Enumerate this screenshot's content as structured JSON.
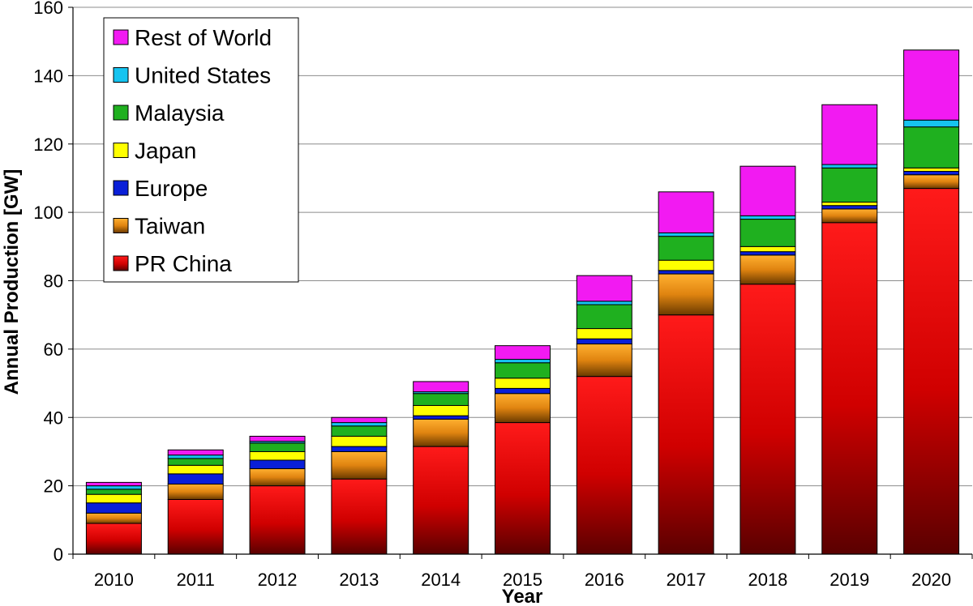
{
  "chart_data": {
    "type": "bar",
    "stacked": true,
    "title": "",
    "xlabel": "Year",
    "ylabel": "Annual Production [GW]",
    "ylim": [
      0,
      160
    ],
    "yticks": [
      0,
      20,
      40,
      60,
      80,
      100,
      120,
      140,
      160
    ],
    "grid": true,
    "legend_position": "top-left",
    "categories": [
      "2010",
      "2011",
      "2012",
      "2013",
      "2014",
      "2015",
      "2016",
      "2017",
      "2018",
      "2019",
      "2020"
    ],
    "series": [
      {
        "name": "PR China",
        "color": "#d40000",
        "values": [
          9,
          16,
          20,
          22,
          31.5,
          38.5,
          52,
          70,
          79,
          97,
          107
        ]
      },
      {
        "name": "Taiwan",
        "color": "#f39a1f",
        "values": [
          3,
          4.5,
          5,
          8,
          8,
          8.5,
          9.5,
          12,
          8.5,
          4,
          4
        ]
      },
      {
        "name": "Europe",
        "color": "#0a1fd8",
        "values": [
          3,
          3,
          2.5,
          1.5,
          1,
          1.5,
          1.5,
          1,
          1,
          1,
          1
        ]
      },
      {
        "name": "Japan",
        "color": "#ffff00",
        "values": [
          2.5,
          2.5,
          2.5,
          3,
          3,
          3,
          3,
          3,
          1.5,
          1,
          1
        ]
      },
      {
        "name": "Malaysia",
        "color": "#1fb01f",
        "values": [
          1.5,
          2,
          2.5,
          3,
          3.5,
          4.5,
          7,
          7,
          8,
          10,
          12
        ]
      },
      {
        "name": "United States",
        "color": "#16c4f0",
        "values": [
          1,
          1,
          0.5,
          1,
          0.5,
          1,
          1,
          1,
          1,
          1,
          2
        ]
      },
      {
        "name": "Rest of World",
        "color": "#f21af2",
        "values": [
          1,
          1.5,
          1.5,
          1.5,
          3,
          4,
          7.5,
          12,
          14.5,
          17.5,
          20.5
        ]
      }
    ]
  }
}
